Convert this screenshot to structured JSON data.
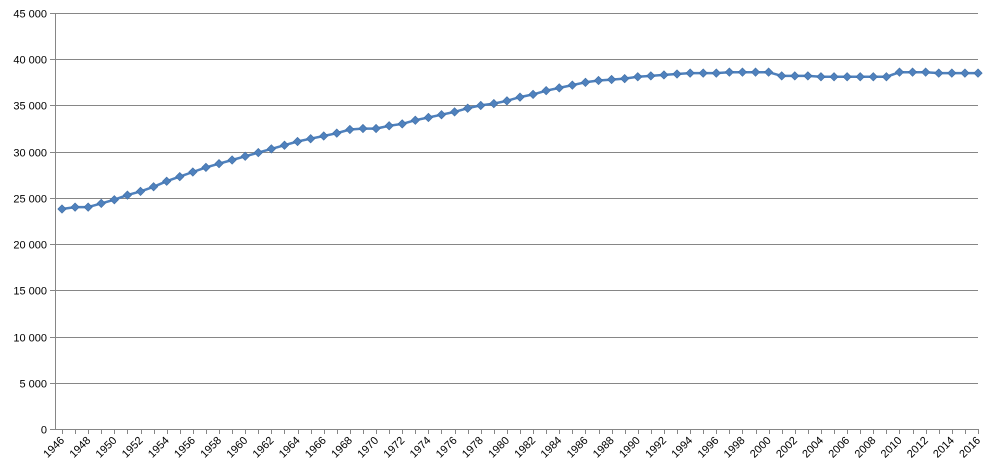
{
  "chart_data": {
    "type": "line",
    "title": "",
    "xlabel": "",
    "ylabel": "",
    "ylim": [
      0,
      45000
    ],
    "yticks": [
      0,
      5000,
      10000,
      15000,
      20000,
      25000,
      30000,
      35000,
      40000,
      45000
    ],
    "ytick_labels": [
      "0",
      "5 000",
      "10 000",
      "15 000",
      "20 000",
      "25 000",
      "30 000",
      "35 000",
      "40 000",
      "45 000"
    ],
    "xtick_labels": [
      "1946",
      "1948",
      "1950",
      "1952",
      "1954",
      "1956",
      "1958",
      "1960",
      "1962",
      "1964",
      "1966",
      "1968",
      "1970",
      "1972",
      "1974",
      "1976",
      "1978",
      "1980",
      "1982",
      "1984",
      "1986",
      "1988",
      "1990",
      "1992",
      "1994",
      "1996",
      "1998",
      "2000",
      "2002",
      "2004",
      "2006",
      "2008",
      "2010",
      "2012",
      "2014",
      "2016"
    ],
    "grid": true,
    "legend": false,
    "line_color": "#4f81bd",
    "marker": "diamond",
    "series": [
      {
        "x": [
          1946,
          1947,
          1948,
          1949,
          1950,
          1951,
          1952,
          1953,
          1954,
          1955,
          1956,
          1957,
          1958,
          1959,
          1960,
          1961,
          1962,
          1963,
          1964,
          1965,
          1966,
          1967,
          1968,
          1969,
          1970,
          1971,
          1972,
          1973,
          1974,
          1975,
          1976,
          1977,
          1978,
          1979,
          1980,
          1981,
          1982,
          1983,
          1984,
          1985,
          1986,
          1987,
          1988,
          1989,
          1990,
          1991,
          1992,
          1993,
          1994,
          1995,
          1996,
          1997,
          1998,
          1999,
          2000,
          2001,
          2002,
          2003,
          2004,
          2005,
          2006,
          2007,
          2008,
          2009,
          2010,
          2011,
          2012,
          2013,
          2014,
          2015,
          2016
        ],
        "values": [
          23800,
          24000,
          24000,
          24400,
          24800,
          25300,
          25700,
          26200,
          26800,
          27300,
          27800,
          28300,
          28700,
          29100,
          29500,
          29900,
          30300,
          30700,
          31100,
          31400,
          31700,
          32000,
          32400,
          32500,
          32500,
          32800,
          33000,
          33400,
          33700,
          34000,
          34300,
          34700,
          35000,
          35200,
          35500,
          35900,
          36200,
          36600,
          36900,
          37200,
          37500,
          37700,
          37800,
          37900,
          38100,
          38200,
          38300,
          38400,
          38500,
          38500,
          38500,
          38600,
          38600,
          38600,
          38600,
          38200,
          38200,
          38200,
          38100,
          38100,
          38100,
          38100,
          38100,
          38100,
          38600,
          38600,
          38600,
          38500,
          38500,
          38500,
          38500
        ]
      }
    ]
  }
}
